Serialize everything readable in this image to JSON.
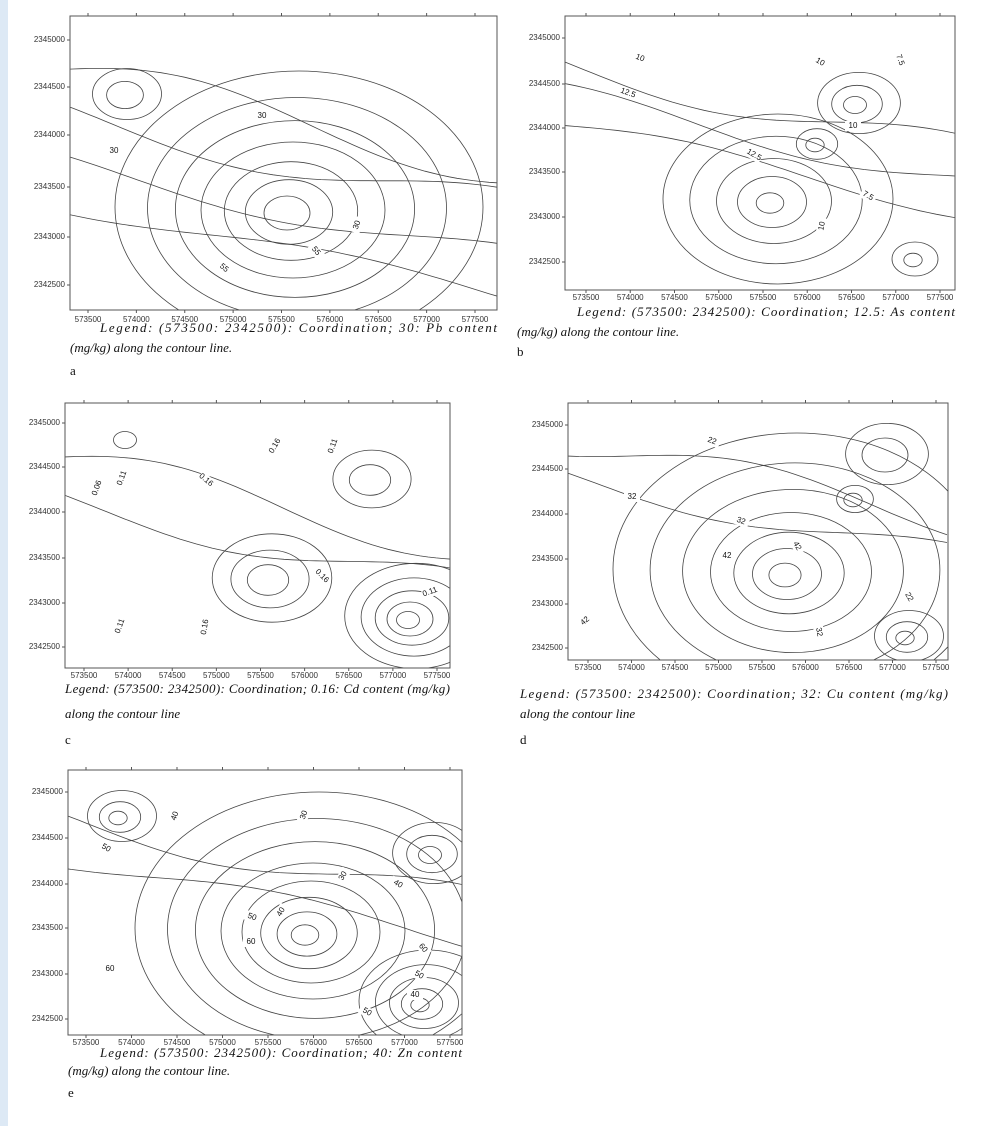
{
  "panels": [
    {
      "letter": "a",
      "yticks": [
        "2345000",
        "2344500",
        "2344000",
        "2343500",
        "2343000",
        "2342500"
      ],
      "xticks": [
        "573500",
        "574000",
        "574500",
        "575000",
        "575500",
        "576000",
        "576500",
        "577000",
        "577500"
      ],
      "contour_labels": [
        "30",
        "30",
        "55",
        "30",
        "55"
      ],
      "caption_lines": [
        "Legend: (573500: 2342500): Coordination; 30: Pb content",
        "(mg/kg) along the contour line."
      ]
    },
    {
      "letter": "b",
      "yticks": [
        "2345000",
        "2344500",
        "2344000",
        "2343500",
        "2343000",
        "2342500"
      ],
      "xticks": [
        "573500",
        "574000",
        "574500",
        "575000",
        "575500",
        "576000",
        "576500",
        "577000",
        "577500"
      ],
      "contour_labels": [
        "10",
        "12.5",
        "10",
        "7.5",
        "10",
        "12.5",
        "7.5",
        "10"
      ],
      "caption_lines": [
        "Legend: (573500: 2342500): Coordination; 12.5: As content",
        "(mg/kg) along the contour line."
      ]
    },
    {
      "letter": "c",
      "yticks": [
        "2345000",
        "2344500",
        "2344000",
        "2343500",
        "2343000",
        "2342500"
      ],
      "xticks": [
        "573500",
        "574000",
        "574500",
        "575000",
        "575500",
        "576000",
        "576500",
        "577000",
        "577500"
      ],
      "contour_labels": [
        "0.16",
        "0.11",
        "0.06",
        "0.11",
        "0.16",
        "0.16",
        "0.11",
        "0.11",
        "0.16"
      ],
      "caption_lines": [
        "Legend: (573500: 2342500): Coordination; 0.16: Cd content (mg/kg)",
        "along the contour line"
      ]
    },
    {
      "letter": "d",
      "yticks": [
        "2345000",
        "2344500",
        "2344000",
        "2343500",
        "2343000",
        "2342500"
      ],
      "xticks": [
        "573500",
        "574000",
        "574500",
        "575000",
        "575500",
        "576000",
        "576500",
        "577000",
        "577500"
      ],
      "contour_labels": [
        "22",
        "32",
        "32",
        "42",
        "42",
        "22",
        "42",
        "32"
      ],
      "caption_lines": [
        "Legend: (573500: 2342500): Coordination; 32: Cu content (mg/kg)",
        "along the contour line"
      ]
    },
    {
      "letter": "e",
      "yticks": [
        "2345000",
        "2344500",
        "2344000",
        "2343500",
        "2343000",
        "2342500"
      ],
      "xticks": [
        "573500",
        "574000",
        "574500",
        "575000",
        "575500",
        "576000",
        "576500",
        "577000",
        "577500"
      ],
      "contour_labels": [
        "40",
        "30",
        "50",
        "40",
        "50",
        "40",
        "30",
        "60",
        "60",
        "60",
        "50",
        "40",
        "50"
      ],
      "caption_lines": [
        "Legend: (573500: 2342500): Coordination; 40: Zn content",
        "(mg/kg) along the contour line."
      ]
    }
  ]
}
